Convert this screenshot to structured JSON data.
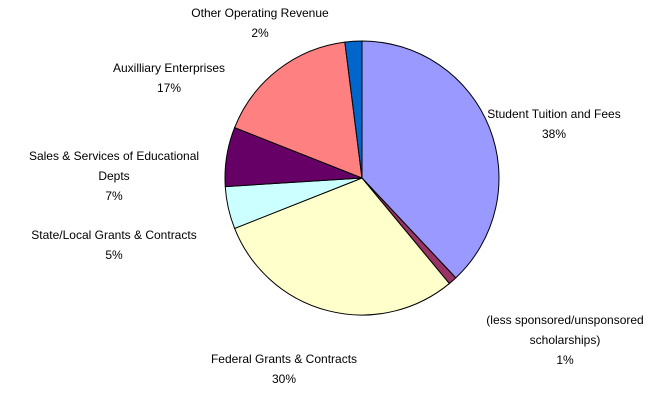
{
  "chart_data": {
    "type": "pie",
    "title": "",
    "slices": [
      {
        "name": "Student Tuition and Fees",
        "label_lines": [
          "Student Tuition and Fees",
          "38%"
        ],
        "value": 38,
        "color": "#9999ff"
      },
      {
        "name": "(less sponsored/unsponsored scholarships)",
        "label_lines": [
          "(less sponsored/unsponsored",
          "scholarships)",
          "1%"
        ],
        "value": 1,
        "color": "#993366"
      },
      {
        "name": "Federal Grants & Contracts",
        "label_lines": [
          "Federal Grants & Contracts",
          "30%"
        ],
        "value": 30,
        "color": "#ffffcc"
      },
      {
        "name": "State/Local Grants & Contracts",
        "label_lines": [
          "State/Local Grants & Contracts",
          "5%"
        ],
        "value": 5,
        "color": "#ccffff"
      },
      {
        "name": "Sales & Services of Educational Depts",
        "label_lines": [
          "Sales & Services of Educational",
          "Depts",
          "7%"
        ],
        "value": 7,
        "color": "#660066"
      },
      {
        "name": "Auxilliary Enterprises",
        "label_lines": [
          "Auxilliary Enterprises",
          "17%"
        ],
        "value": 17,
        "color": "#ff8080"
      },
      {
        "name": "Other Operating Revenue",
        "label_lines": [
          "Other Operating Revenue",
          "2%"
        ],
        "value": 2,
        "color": "#0066cc"
      }
    ]
  }
}
